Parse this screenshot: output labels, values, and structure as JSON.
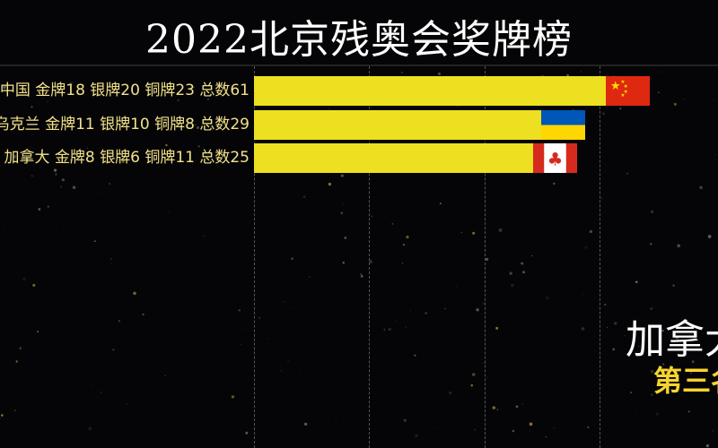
{
  "title": "2022北京残奥会奖牌榜",
  "chart_data": {
    "type": "bar",
    "orientation": "horizontal",
    "title": "2022北京残奥会奖牌榜",
    "categories": [
      "中国",
      "乌克兰",
      "加拿大"
    ],
    "labels": [
      "中国 金牌18 银牌20 铜牌23 总数61",
      "乌克兰 金牌11 银牌10 铜牌8 总数29",
      "加拿大 金牌8 银牌6 铜牌11 总数25"
    ],
    "gold": [
      18,
      11,
      8
    ],
    "silver": [
      20,
      10,
      6
    ],
    "bronze": [
      23,
      8,
      11
    ],
    "values": [
      61,
      29,
      25
    ],
    "flags": [
      "china-flag",
      "ukraine-flag",
      "canada-flag"
    ],
    "bar_color": "#ede020",
    "grid": true
  },
  "highlight": {
    "country": "加拿大",
    "rank": "第三名"
  }
}
